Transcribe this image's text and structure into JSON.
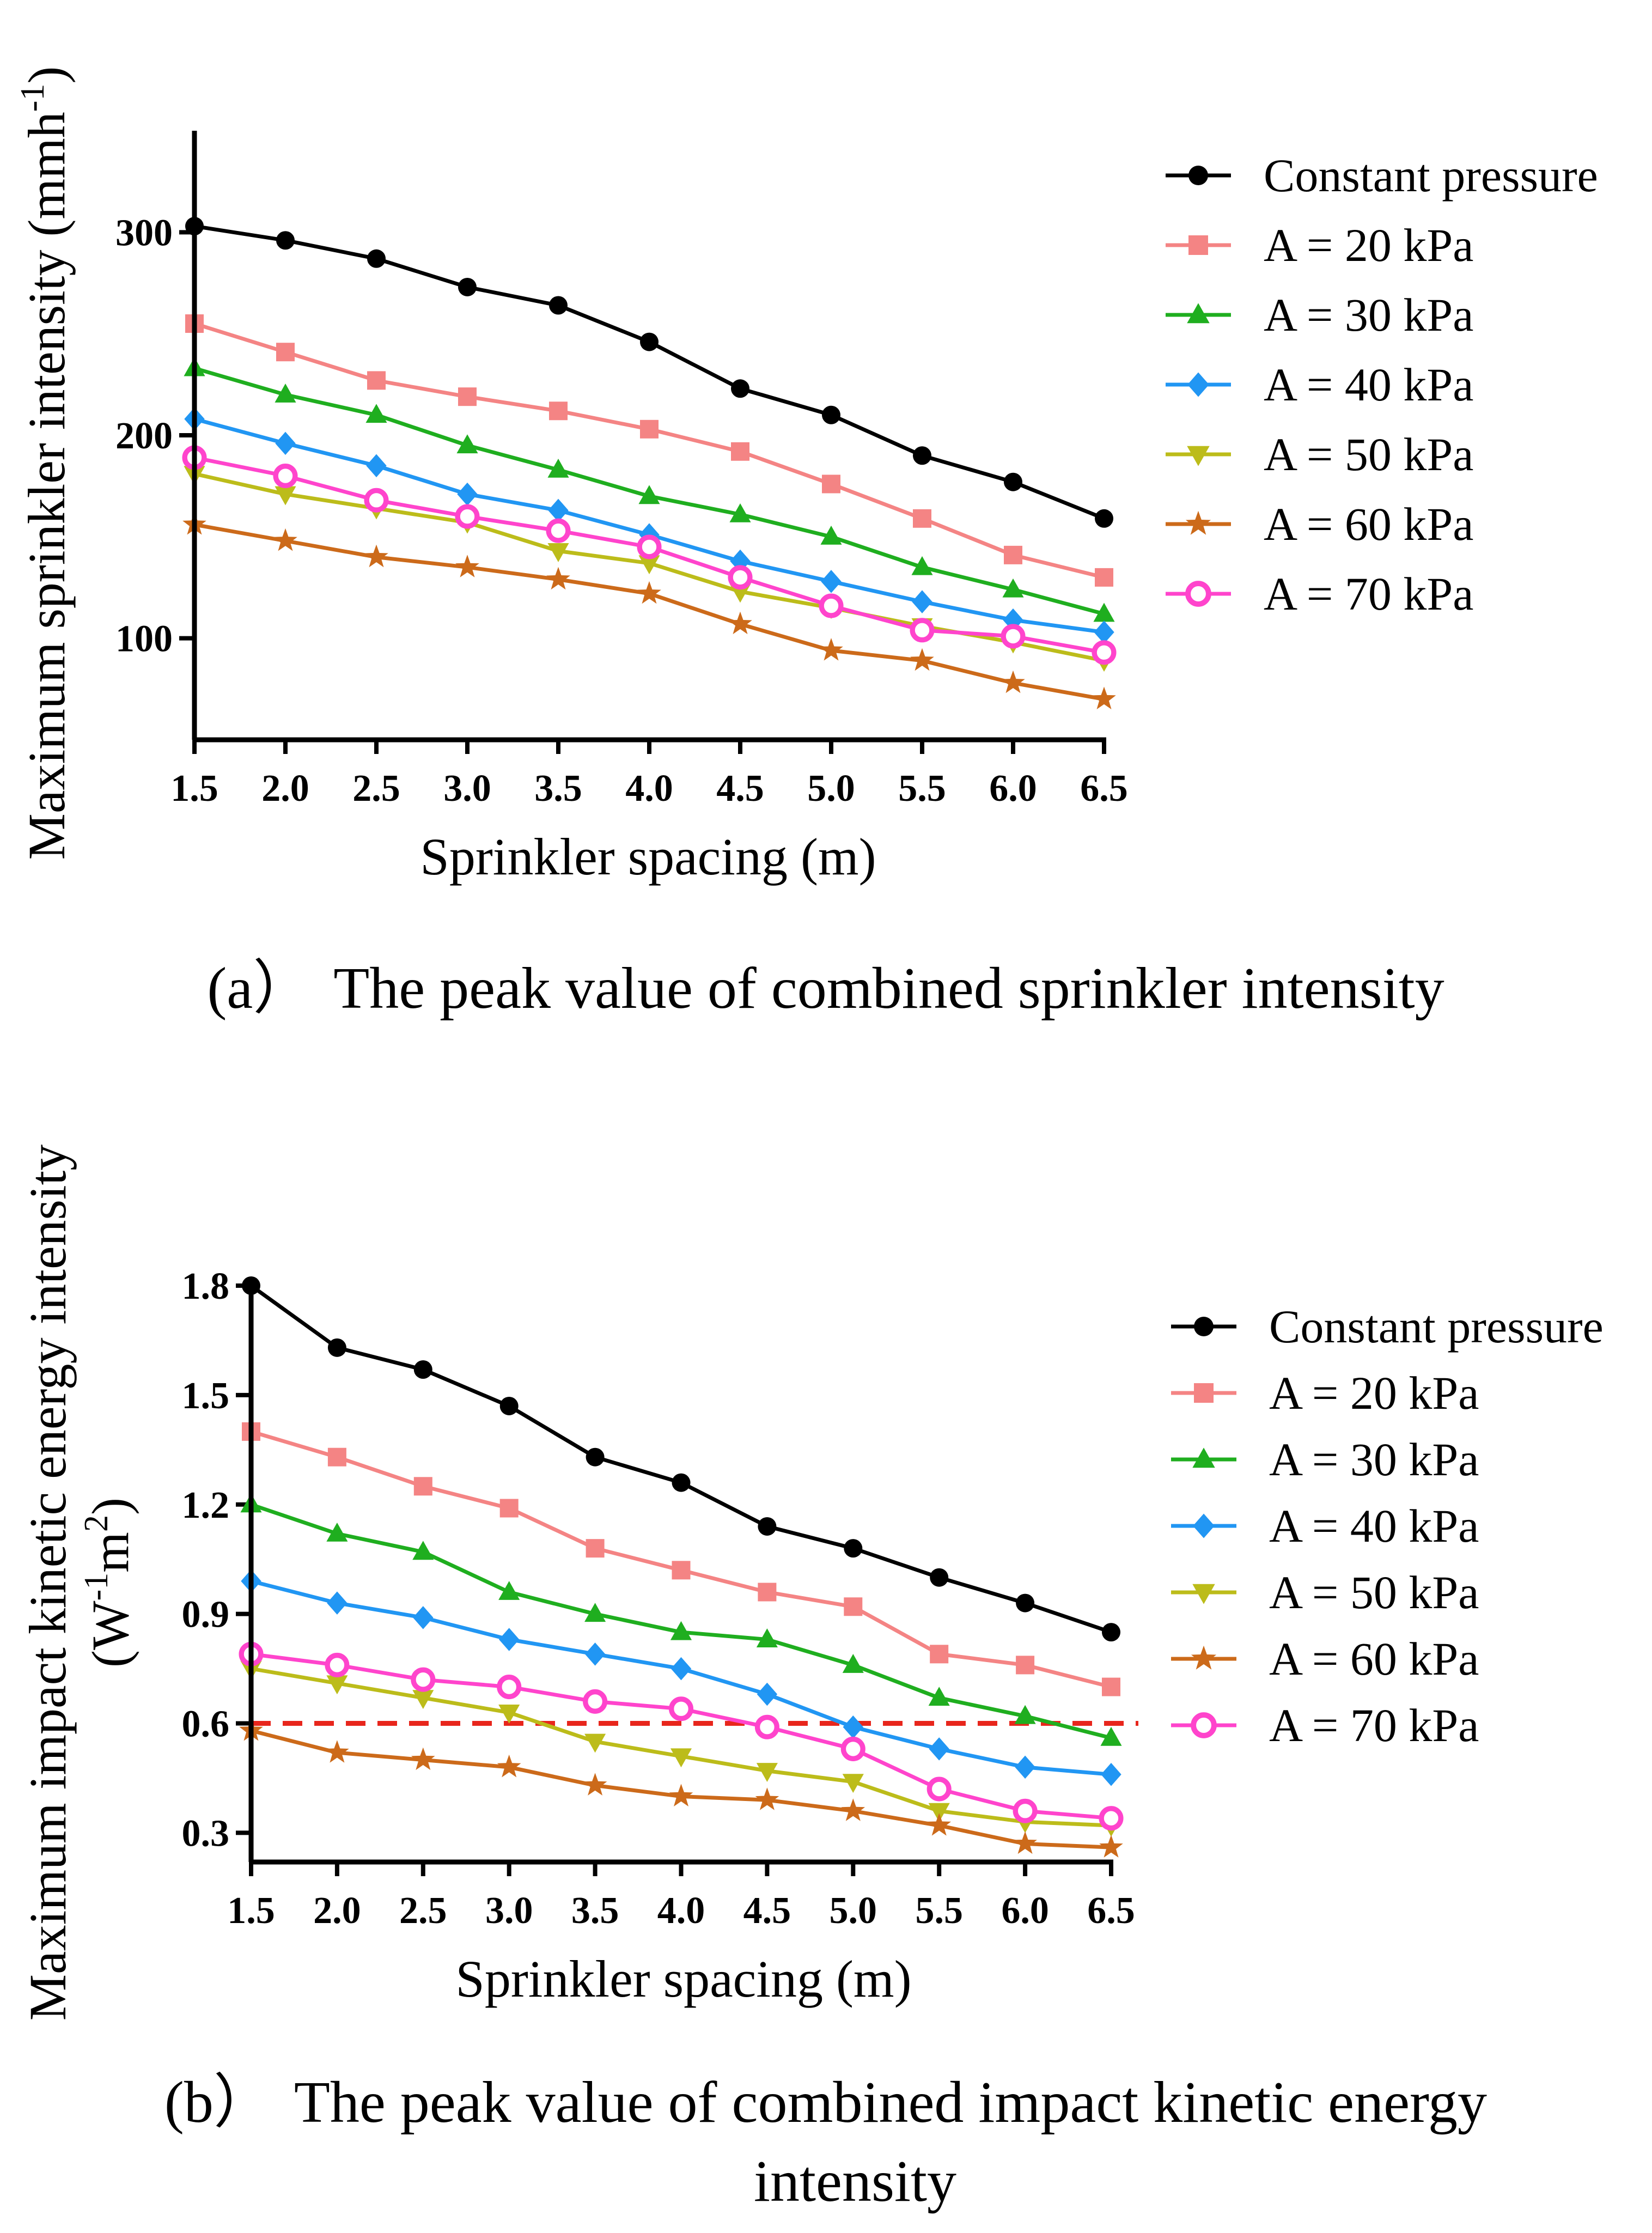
{
  "chart_data": [
    {
      "type": "line",
      "x": [
        1.5,
        2.0,
        2.5,
        3.0,
        3.5,
        4.0,
        4.5,
        5.0,
        5.5,
        6.0,
        6.5
      ],
      "xtick_labels": [
        "1.5",
        "2.0",
        "2.5",
        "3.0",
        "3.5",
        "4.0",
        "4.5",
        "5.0",
        "5.5",
        "6.0",
        "6.5"
      ],
      "xlim": [
        1.5,
        6.5
      ],
      "ylim": [
        50,
        350
      ],
      "yticks": [
        100,
        200,
        300
      ],
      "ytick_labels": [
        "100",
        "200",
        "300"
      ],
      "xlabel": "Sprinkler spacing (m)",
      "ylabel": "Maximum sprinkler intensity (mmh",
      "ylabel_sup": "-1",
      "ylabel_end": ")",
      "caption_marker": "(a）",
      "caption": "The peak value of combined sprinkler intensity",
      "legend_position": "right",
      "series": [
        {
          "name": "Constant pressure",
          "color": "#000000",
          "marker": "circle",
          "values": [
            303,
            296,
            287,
            273,
            264,
            246,
            223,
            210,
            190,
            177,
            159
          ]
        },
        {
          "name": "A = 20 kPa",
          "color": "#f48484",
          "marker": "square",
          "values": [
            255,
            241,
            227,
            219,
            212,
            203,
            192,
            176,
            159,
            141,
            130
          ]
        },
        {
          "name": "A = 30 kPa",
          "color": "#1fae1f",
          "marker": "triangle-up",
          "values": [
            233,
            220,
            210,
            195,
            183,
            170,
            161,
            150,
            135,
            124,
            112
          ]
        },
        {
          "name": "A = 40 kPa",
          "color": "#2196f3",
          "marker": "diamond",
          "values": [
            208,
            196,
            185,
            171,
            163,
            151,
            138,
            128,
            118,
            109,
            103
          ]
        },
        {
          "name": "A = 50 kPa",
          "color": "#bcbc1a",
          "marker": "triangle-down",
          "values": [
            181,
            171,
            164,
            157,
            143,
            137,
            123,
            115,
            106,
            98,
            89
          ]
        },
        {
          "name": "A = 60 kPa",
          "color": "#cc6a1a",
          "marker": "star",
          "values": [
            156,
            148,
            140,
            135,
            129,
            122,
            107,
            94,
            89,
            78,
            70
          ]
        },
        {
          "name": "A = 70 kPa",
          "color": "#ff44cc",
          "marker": "circle-open",
          "values": [
            189,
            180,
            168,
            160,
            153,
            145,
            130,
            116,
            104,
            101,
            93
          ]
        }
      ]
    },
    {
      "type": "line",
      "x": [
        1.5,
        2.0,
        2.5,
        3.0,
        3.5,
        4.0,
        4.5,
        5.0,
        5.5,
        6.0,
        6.5
      ],
      "xtick_labels": [
        "1.5",
        "2.0",
        "2.5",
        "3.0",
        "3.5",
        "4.0",
        "4.5",
        "5.0",
        "5.5",
        "6.0",
        "6.5"
      ],
      "xlim": [
        1.5,
        6.5
      ],
      "ylim": [
        0.22,
        1.8
      ],
      "yticks": [
        0.3,
        0.6,
        0.9,
        1.2,
        1.5,
        1.8
      ],
      "ytick_labels": [
        "0.3",
        "0.6",
        "0.9",
        "1.2",
        "1.5",
        "1.8"
      ],
      "xlabel": "Sprinkler spacing (m)",
      "ylabel_line1": "Maximum impact kinetic energy intensity",
      "ylabel_line2_a": "(W",
      "ylabel_line2_sup1": "-1",
      "ylabel_line2_b": "m",
      "ylabel_line2_sup2": "2",
      "ylabel_line2_c": ")",
      "reference_line": {
        "y": 0.6,
        "color": "#e8261c",
        "style": "dashed"
      },
      "caption_marker": "(b）",
      "caption": "The peak value of combined impact kinetic energy",
      "caption_line2": "intensity",
      "legend_position": "right",
      "series": [
        {
          "name": "Constant pressure",
          "color": "#000000",
          "marker": "circle",
          "values": [
            1.8,
            1.63,
            1.57,
            1.47,
            1.33,
            1.26,
            1.14,
            1.08,
            1.0,
            0.93,
            0.85
          ]
        },
        {
          "name": "A = 20 kPa",
          "color": "#f48484",
          "marker": "square",
          "values": [
            1.4,
            1.33,
            1.25,
            1.19,
            1.08,
            1.02,
            0.96,
            0.92,
            0.79,
            0.76,
            0.7
          ]
        },
        {
          "name": "A = 30 kPa",
          "color": "#1fae1f",
          "marker": "triangle-up",
          "values": [
            1.2,
            1.12,
            1.07,
            0.96,
            0.9,
            0.85,
            0.83,
            0.76,
            0.67,
            0.62,
            0.56
          ]
        },
        {
          "name": "A = 40 kPa",
          "color": "#2196f3",
          "marker": "diamond",
          "values": [
            0.99,
            0.93,
            0.89,
            0.83,
            0.79,
            0.75,
            0.68,
            0.59,
            0.53,
            0.48,
            0.46
          ]
        },
        {
          "name": "A = 50 kPa",
          "color": "#bcbc1a",
          "marker": "triangle-down",
          "values": [
            0.75,
            0.71,
            0.67,
            0.63,
            0.55,
            0.51,
            0.47,
            0.44,
            0.36,
            0.33,
            0.32
          ]
        },
        {
          "name": "A = 60 kPa",
          "color": "#cc6a1a",
          "marker": "star",
          "values": [
            0.58,
            0.52,
            0.5,
            0.48,
            0.43,
            0.4,
            0.39,
            0.36,
            0.32,
            0.27,
            0.26
          ]
        },
        {
          "name": "A = 70 kPa",
          "color": "#ff44cc",
          "marker": "circle-open",
          "values": [
            0.79,
            0.76,
            0.72,
            0.7,
            0.66,
            0.64,
            0.59,
            0.53,
            0.42,
            0.36,
            0.34
          ]
        }
      ]
    }
  ]
}
